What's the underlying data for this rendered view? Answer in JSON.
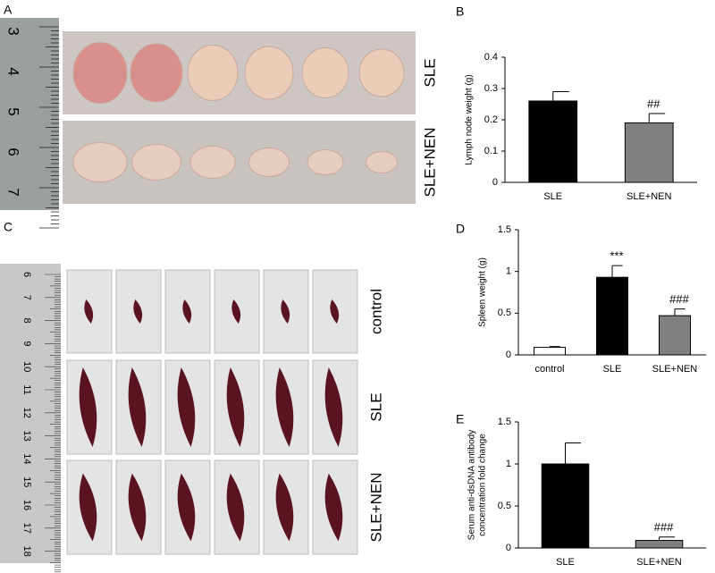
{
  "panel_labels": [
    "A",
    "B",
    "C",
    "D",
    "E"
  ],
  "photo_A": {
    "ruler_labels": [
      "3",
      "4",
      "5",
      "6",
      "7"
    ],
    "row_labels": [
      "SLE",
      "SLE+NEN"
    ]
  },
  "photo_C": {
    "ruler_labels": [
      "6",
      "7",
      "8",
      "9",
      "10",
      "11",
      "12",
      "13",
      "14",
      "15",
      "16",
      "17",
      "18"
    ],
    "row_labels": [
      "control",
      "SLE",
      "SLE+NEN"
    ]
  },
  "chart_data": [
    {
      "type": "bar",
      "y_label": [
        "Lymph node weight (g)"
      ],
      "categories": [
        "SLE",
        "SLE+NEN"
      ],
      "values": [
        0.26,
        0.19
      ],
      "errors": [
        0.03,
        0.03
      ],
      "colors": [
        "#000000",
        "#808080"
      ],
      "significance": [
        null,
        "##"
      ],
      "ylim": [
        0,
        0.4
      ],
      "yticks": [
        0,
        0.1,
        0.2,
        0.3,
        0.4
      ]
    },
    {
      "type": "bar",
      "y_label": [
        "Spleen weight (g)"
      ],
      "categories": [
        "control",
        "SLE",
        "SLE+NEN"
      ],
      "values": [
        0.09,
        0.93,
        0.47
      ],
      "errors": [
        0.01,
        0.14,
        0.08
      ],
      "colors": [
        "#ffffff",
        "#000000",
        "#808080"
      ],
      "significance": [
        null,
        "***",
        "###"
      ],
      "ylim": [
        0,
        1.5
      ],
      "yticks": [
        0,
        0.5,
        1,
        1.5
      ]
    },
    {
      "type": "bar",
      "y_label": [
        "Serum anti-dsDNA antibody",
        "concentration fold change"
      ],
      "categories": [
        "SLE",
        "SLE+NEN"
      ],
      "values": [
        1,
        0.09
      ],
      "errors": [
        0.25,
        0.04
      ],
      "colors": [
        "#000000",
        "#808080"
      ],
      "significance": [
        null,
        "###"
      ],
      "ylim": [
        0,
        1.5
      ],
      "yticks": [
        0,
        0.5,
        1,
        1.5
      ]
    }
  ]
}
